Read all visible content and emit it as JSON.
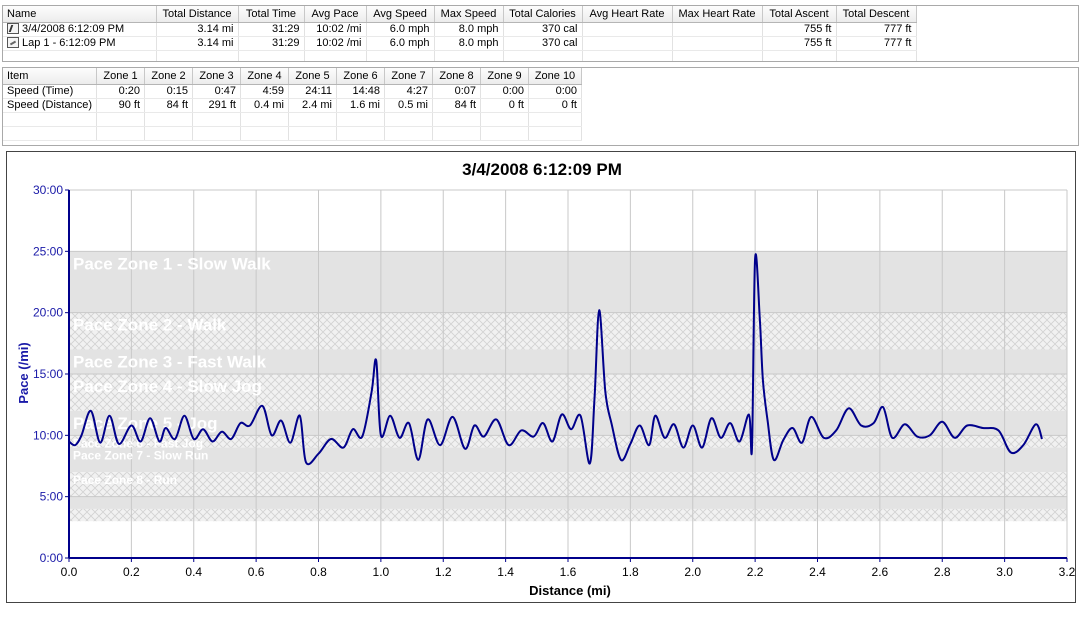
{
  "summary_grid": {
    "columns": [
      "Name",
      "Total Distance",
      "Total Time",
      "Avg Pace",
      "Avg Speed",
      "Max Speed",
      "Total Calories",
      "Avg Heart Rate",
      "Max Heart Rate",
      "Total Ascent",
      "Total Descent"
    ],
    "rows": [
      {
        "icon": "run-activity-icon",
        "cells": [
          "3/4/2008 6:12:09 PM",
          "3.14 mi",
          "31:29",
          "10:02 /mi",
          "6.0 mph",
          "8.0 mph",
          "370 cal",
          "",
          "",
          "755 ft",
          "777 ft"
        ]
      },
      {
        "icon": "lap-icon",
        "cells": [
          "Lap 1 - 6:12:09 PM",
          "3.14 mi",
          "31:29",
          "10:02 /mi",
          "6.0 mph",
          "8.0 mph",
          "370 cal",
          "",
          "",
          "755 ft",
          "777 ft"
        ]
      }
    ]
  },
  "zone_grid": {
    "columns": [
      "Item",
      "Zone 1",
      "Zone 2",
      "Zone 3",
      "Zone 4",
      "Zone 5",
      "Zone 6",
      "Zone 7",
      "Zone 8",
      "Zone 9",
      "Zone 10"
    ],
    "rows": [
      [
        "Speed (Time)",
        "0:20",
        "0:15",
        "0:47",
        "4:59",
        "24:11",
        "14:48",
        "4:27",
        "0:07",
        "0:00",
        "0:00"
      ],
      [
        "Speed (Distance)",
        "90 ft",
        "84 ft",
        "291 ft",
        "0.4 mi",
        "2.4 mi",
        "1.6 mi",
        "0.5 mi",
        "84 ft",
        "0 ft",
        "0 ft"
      ]
    ]
  },
  "chart_data": {
    "type": "line",
    "title": "3/4/2008 6:12:09 PM",
    "xlabel": "Distance (mi)",
    "ylabel": "Pace (/mi)",
    "xlim": [
      0.0,
      3.2
    ],
    "ylim": [
      0,
      30
    ],
    "x_ticks": [
      "0.0",
      "0.2",
      "0.4",
      "0.6",
      "0.8",
      "1.0",
      "1.2",
      "1.4",
      "1.6",
      "1.8",
      "2.0",
      "2.2",
      "2.4",
      "2.6",
      "2.8",
      "3.0",
      "3.2"
    ],
    "y_ticks": [
      "0:00",
      "5:00",
      "10:00",
      "15:00",
      "20:00",
      "25:00",
      "30:00"
    ],
    "y_tick_values": [
      0,
      5,
      10,
      15,
      20,
      25,
      30
    ],
    "grid": true,
    "line_color": "#00008b",
    "zones": [
      {
        "label": "Pace Zone 1 - Slow Walk",
        "from": 20,
        "to": 25,
        "style": "solid"
      },
      {
        "label": "Pace Zone 2 - Walk",
        "from": 17,
        "to": 20,
        "style": "hatch"
      },
      {
        "label": "Pace Zone 3 - Fast Walk",
        "from": 15,
        "to": 17,
        "style": "solid"
      },
      {
        "label": "Pace Zone 4 - Slow Jog",
        "from": 12,
        "to": 15,
        "style": "hatch"
      },
      {
        "label": "Pace Zone 5 - Jog",
        "from": 10,
        "to": 12,
        "style": "solid"
      },
      {
        "label": "Pace Zone 6 - Fast Jog",
        "from": 9,
        "to": 10,
        "style": "hatch"
      },
      {
        "label": "Pace Zone 7 - Slow Run",
        "from": 7,
        "to": 9,
        "style": "solid"
      },
      {
        "label": "Pace Zone 8 - Run",
        "from": 5,
        "to": 7,
        "style": "hatch"
      },
      {
        "label": "",
        "from": 4,
        "to": 5,
        "style": "solid"
      },
      {
        "label": "",
        "from": 3,
        "to": 4,
        "style": "hatch"
      }
    ],
    "series": [
      {
        "x": [
          0.0,
          0.02,
          0.04,
          0.07,
          0.1,
          0.13,
          0.16,
          0.2,
          0.23,
          0.26,
          0.29,
          0.31,
          0.34,
          0.37,
          0.4,
          0.43,
          0.46,
          0.49,
          0.52,
          0.55,
          0.58,
          0.62,
          0.65,
          0.68,
          0.71,
          0.74,
          0.76,
          0.8,
          0.84,
          0.88,
          0.91,
          0.94,
          0.97,
          0.985,
          1.0,
          1.03,
          1.06,
          1.09,
          1.12,
          1.15,
          1.19,
          1.23,
          1.27,
          1.3,
          1.33,
          1.37,
          1.41,
          1.45,
          1.49,
          1.52,
          1.55,
          1.58,
          1.61,
          1.64,
          1.67,
          1.685,
          1.7,
          1.72,
          1.74,
          1.77,
          1.8,
          1.83,
          1.86,
          1.88,
          1.91,
          1.94,
          1.97,
          2.0,
          2.03,
          2.06,
          2.09,
          2.12,
          2.15,
          2.18,
          2.19,
          2.2,
          2.215,
          2.225,
          2.24,
          2.26,
          2.29,
          2.32,
          2.35,
          2.38,
          2.42,
          2.46,
          2.5,
          2.54,
          2.58,
          2.61,
          2.64,
          2.68,
          2.72,
          2.76,
          2.8,
          2.84,
          2.88,
          2.93,
          2.98,
          3.02,
          3.06,
          3.1,
          3.12
        ],
        "y": [
          9.5,
          9.2,
          10.0,
          12.0,
          9.4,
          11.6,
          9.3,
          10.8,
          9.5,
          11.4,
          9.5,
          10.6,
          9.7,
          11.6,
          9.7,
          10.5,
          9.5,
          10.3,
          9.7,
          11.0,
          10.8,
          12.4,
          10.0,
          11.2,
          9.4,
          11.6,
          7.8,
          8.5,
          9.7,
          9.0,
          10.5,
          9.9,
          13.5,
          16.1,
          10.0,
          11.6,
          9.8,
          11.0,
          8.0,
          11.3,
          9.2,
          11.5,
          8.9,
          10.8,
          9.9,
          11.3,
          9.2,
          10.4,
          9.9,
          11.0,
          9.5,
          11.7,
          10.5,
          11.6,
          7.7,
          13.0,
          20.2,
          13.5,
          10.9,
          8.0,
          9.3,
          10.8,
          9.2,
          11.6,
          9.8,
          10.9,
          9.0,
          10.8,
          9.0,
          11.4,
          9.8,
          11.0,
          9.5,
          11.7,
          9.0,
          24.4,
          19.5,
          14.5,
          11.2,
          8.0,
          9.6,
          10.6,
          9.4,
          11.5,
          9.8,
          10.4,
          12.2,
          10.8,
          11.0,
          12.3,
          9.8,
          10.9,
          9.9,
          10.0,
          11.1,
          9.8,
          10.8,
          10.6,
          10.4,
          8.6,
          9.2,
          10.9,
          9.7
        ]
      }
    ]
  }
}
